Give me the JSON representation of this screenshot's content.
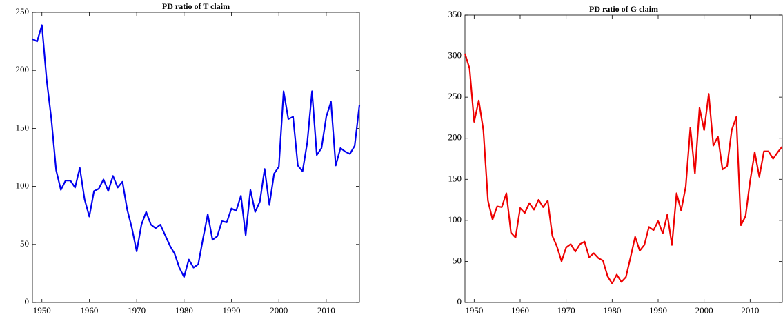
{
  "chart_data": [
    {
      "type": "line",
      "title": "PD ratio of T claim",
      "x": [
        1948,
        1949,
        1950,
        1951,
        1952,
        1953,
        1954,
        1955,
        1956,
        1957,
        1958,
        1959,
        1960,
        1961,
        1962,
        1963,
        1964,
        1965,
        1966,
        1967,
        1968,
        1969,
        1970,
        1971,
        1972,
        1973,
        1974,
        1975,
        1976,
        1977,
        1978,
        1979,
        1980,
        1981,
        1982,
        1983,
        1984,
        1985,
        1986,
        1987,
        1988,
        1989,
        1990,
        1991,
        1992,
        1993,
        1994,
        1995,
        1996,
        1997,
        1998,
        1999,
        2000,
        2001,
        2002,
        2003,
        2004,
        2005,
        2006,
        2007,
        2008,
        2009,
        2010,
        2011,
        2012,
        2013,
        2014,
        2015,
        2016,
        2017
      ],
      "series": [
        {
          "name": "T claim",
          "color": "#0000ee",
          "values": [
            227,
            225,
            239,
            192,
            158,
            114,
            97,
            105,
            105,
            99,
            116,
            89,
            74,
            96,
            98,
            106,
            96,
            109,
            99,
            104,
            80,
            64,
            44,
            67,
            78,
            67,
            64,
            67,
            58,
            49,
            42,
            30,
            22,
            37,
            30,
            33,
            55,
            76,
            54,
            57,
            70,
            69,
            81,
            79,
            92,
            58,
            97,
            78,
            87,
            115,
            84,
            111,
            117,
            182,
            158,
            160,
            118,
            113,
            138,
            182,
            127,
            133,
            160,
            173,
            118,
            133,
            130,
            128,
            135,
            170
          ]
        }
      ],
      "xlim": [
        1948,
        2017
      ],
      "xticks": [
        1950,
        1960,
        1970,
        1980,
        1990,
        2000,
        2010
      ],
      "ylim": [
        0,
        250
      ],
      "yticks": [
        0,
        50,
        100,
        150,
        200,
        250
      ]
    },
    {
      "type": "line",
      "title": "PD ratio of G claim",
      "x": [
        1948,
        1949,
        1950,
        1951,
        1952,
        1953,
        1954,
        1955,
        1956,
        1957,
        1958,
        1959,
        1960,
        1961,
        1962,
        1963,
        1964,
        1965,
        1966,
        1967,
        1968,
        1969,
        1970,
        1971,
        1972,
        1973,
        1974,
        1975,
        1976,
        1977,
        1978,
        1979,
        1980,
        1981,
        1982,
        1983,
        1984,
        1985,
        1986,
        1987,
        1988,
        1989,
        1990,
        1991,
        1992,
        1993,
        1994,
        1995,
        1996,
        1997,
        1998,
        1999,
        2000,
        2001,
        2002,
        2003,
        2004,
        2005,
        2006,
        2007,
        2008,
        2009,
        2010,
        2011,
        2012,
        2013,
        2014,
        2015,
        2016,
        2017
      ],
      "series": [
        {
          "name": "G claim",
          "color": "#ee0000",
          "values": [
            303,
            285,
            220,
            246,
            210,
            124,
            101,
            117,
            116,
            133,
            85,
            79,
            115,
            109,
            121,
            113,
            125,
            116,
            124,
            81,
            68,
            50,
            67,
            71,
            62,
            71,
            74,
            55,
            60,
            54,
            51,
            32,
            23,
            34,
            25,
            31,
            55,
            80,
            63,
            70,
            92,
            88,
            99,
            84,
            107,
            70,
            133,
            112,
            141,
            213,
            157,
            237,
            210,
            254,
            191,
            202,
            162,
            166,
            210,
            226,
            94,
            105,
            148,
            183,
            153,
            184,
            184,
            175,
            183,
            190
          ]
        }
      ],
      "xlim": [
        1948,
        2017
      ],
      "xticks": [
        1950,
        1960,
        1970,
        1980,
        1990,
        2000,
        2010
      ],
      "ylim": [
        0,
        350
      ],
      "yticks": [
        0,
        50,
        100,
        150,
        200,
        250,
        300,
        350
      ]
    }
  ]
}
